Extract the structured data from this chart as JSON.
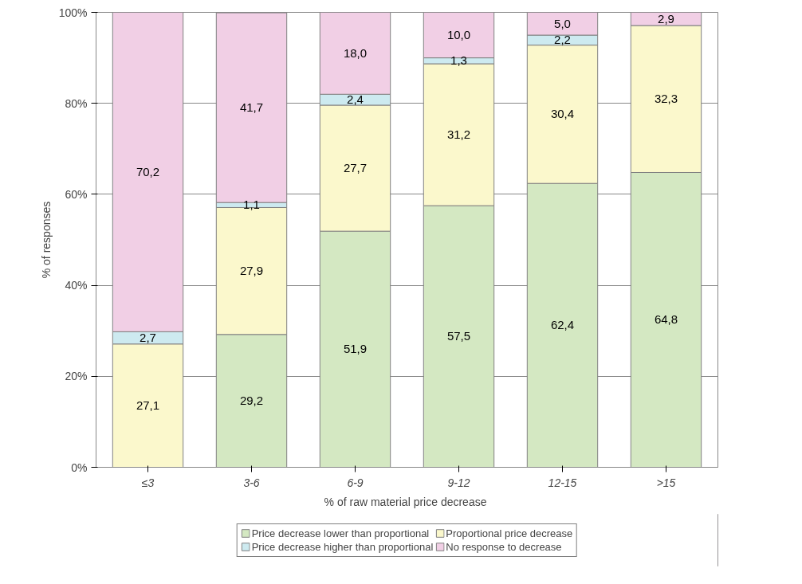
{
  "chart_data": {
    "type": "bar",
    "stacked": true,
    "xlabel": "% of raw material  price decrease",
    "ylabel": "% of responses",
    "categories": [
      "≤3",
      "3-6",
      "6-9",
      "9-12",
      "12-15",
      ">15"
    ],
    "series": [
      {
        "name": "Price decrease lower than proportional",
        "color": "#d4e8c2",
        "values": [
          null,
          29.2,
          51.9,
          57.5,
          62.4,
          64.8
        ]
      },
      {
        "name": "Proportional price decrease",
        "color": "#fbf8cc",
        "values": [
          27.1,
          27.9,
          27.7,
          31.2,
          30.4,
          32.3
        ]
      },
      {
        "name": "Price decrease higher than proportional",
        "color": "#cdeaf0",
        "values": [
          2.7,
          1.1,
          2.4,
          1.3,
          2.2,
          null
        ]
      },
      {
        "name": "No response to decrease",
        "color": "#f1cfe5",
        "values": [
          70.2,
          41.7,
          18.0,
          10.0,
          5.0,
          2.9
        ]
      }
    ],
    "value_labels": [
      [
        null,
        "29,2",
        "51,9",
        "57,5",
        "62,4",
        "64,8"
      ],
      [
        "27,1",
        "27,9",
        "27,7",
        "31,2",
        "30,4",
        "32,3"
      ],
      [
        "2,7",
        "1,1",
        "2,4",
        "1,3",
        "2,2",
        null
      ],
      [
        "70,2",
        "41,7",
        "18,0",
        "10,0",
        "5,0",
        "2,9"
      ]
    ],
    "ylim": [
      0,
      100
    ],
    "yticks": [
      {
        "value": 0,
        "label": "0%"
      },
      {
        "value": 20,
        "label": "20%"
      },
      {
        "value": 40,
        "label": "40%"
      },
      {
        "value": 60,
        "label": "60%"
      },
      {
        "value": 80,
        "label": "80%"
      },
      {
        "value": 100,
        "label": "100%"
      }
    ],
    "grid": "y",
    "legend": "bottom"
  }
}
